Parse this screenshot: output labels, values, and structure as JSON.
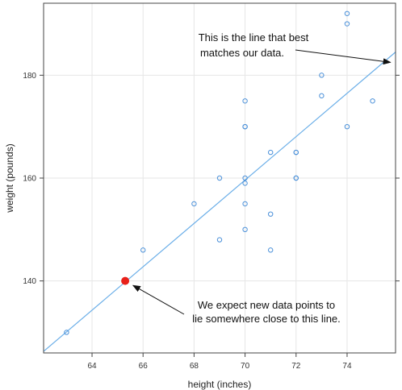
{
  "chart_data": {
    "type": "scatter",
    "xlabel": "height (inches)",
    "ylabel": "weight (pounds)",
    "xlim": [
      62.1,
      75.9
    ],
    "ylim": [
      126,
      194
    ],
    "xticks": [
      64,
      66,
      68,
      70,
      72,
      74
    ],
    "yticks": [
      140,
      160,
      180
    ],
    "grid": true,
    "colors": {
      "points": "#4a90d9",
      "line": "#6aaee8",
      "highlight": "#e8201a",
      "grid": "#e6e6e6",
      "frame": "#444444"
    },
    "points": [
      {
        "x": 63,
        "y": 130
      },
      {
        "x": 66,
        "y": 146
      },
      {
        "x": 68,
        "y": 155
      },
      {
        "x": 69,
        "y": 160
      },
      {
        "x": 69,
        "y": 148
      },
      {
        "x": 70,
        "y": 175
      },
      {
        "x": 70,
        "y": 170
      },
      {
        "x": 70,
        "y": 170
      },
      {
        "x": 70,
        "y": 160
      },
      {
        "x": 70,
        "y": 159
      },
      {
        "x": 70,
        "y": 155
      },
      {
        "x": 70,
        "y": 150
      },
      {
        "x": 71,
        "y": 165
      },
      {
        "x": 71,
        "y": 153
      },
      {
        "x": 71,
        "y": 146
      },
      {
        "x": 72,
        "y": 165
      },
      {
        "x": 72,
        "y": 165
      },
      {
        "x": 72,
        "y": 160
      },
      {
        "x": 72,
        "y": 160
      },
      {
        "x": 73,
        "y": 180
      },
      {
        "x": 73,
        "y": 176
      },
      {
        "x": 74,
        "y": 192
      },
      {
        "x": 74,
        "y": 190
      },
      {
        "x": 74,
        "y": 170
      },
      {
        "x": 75,
        "y": 175
      }
    ],
    "fit_line": {
      "x": [
        62.1,
        75.9
      ],
      "y": [
        126.3,
        184.5
      ]
    },
    "highlight_point": {
      "x": 65.3,
      "y": 140
    },
    "annotations": [
      {
        "lines": [
          "This is the line that best",
          "matches our data."
        ],
        "arrow_to": {
          "x": 75.7,
          "y": 182.5
        }
      },
      {
        "lines": [
          "We expect new data points to",
          "lie somewhere close to this line."
        ],
        "arrow_to": {
          "x": 65.45,
          "y": 139.6
        }
      }
    ]
  }
}
